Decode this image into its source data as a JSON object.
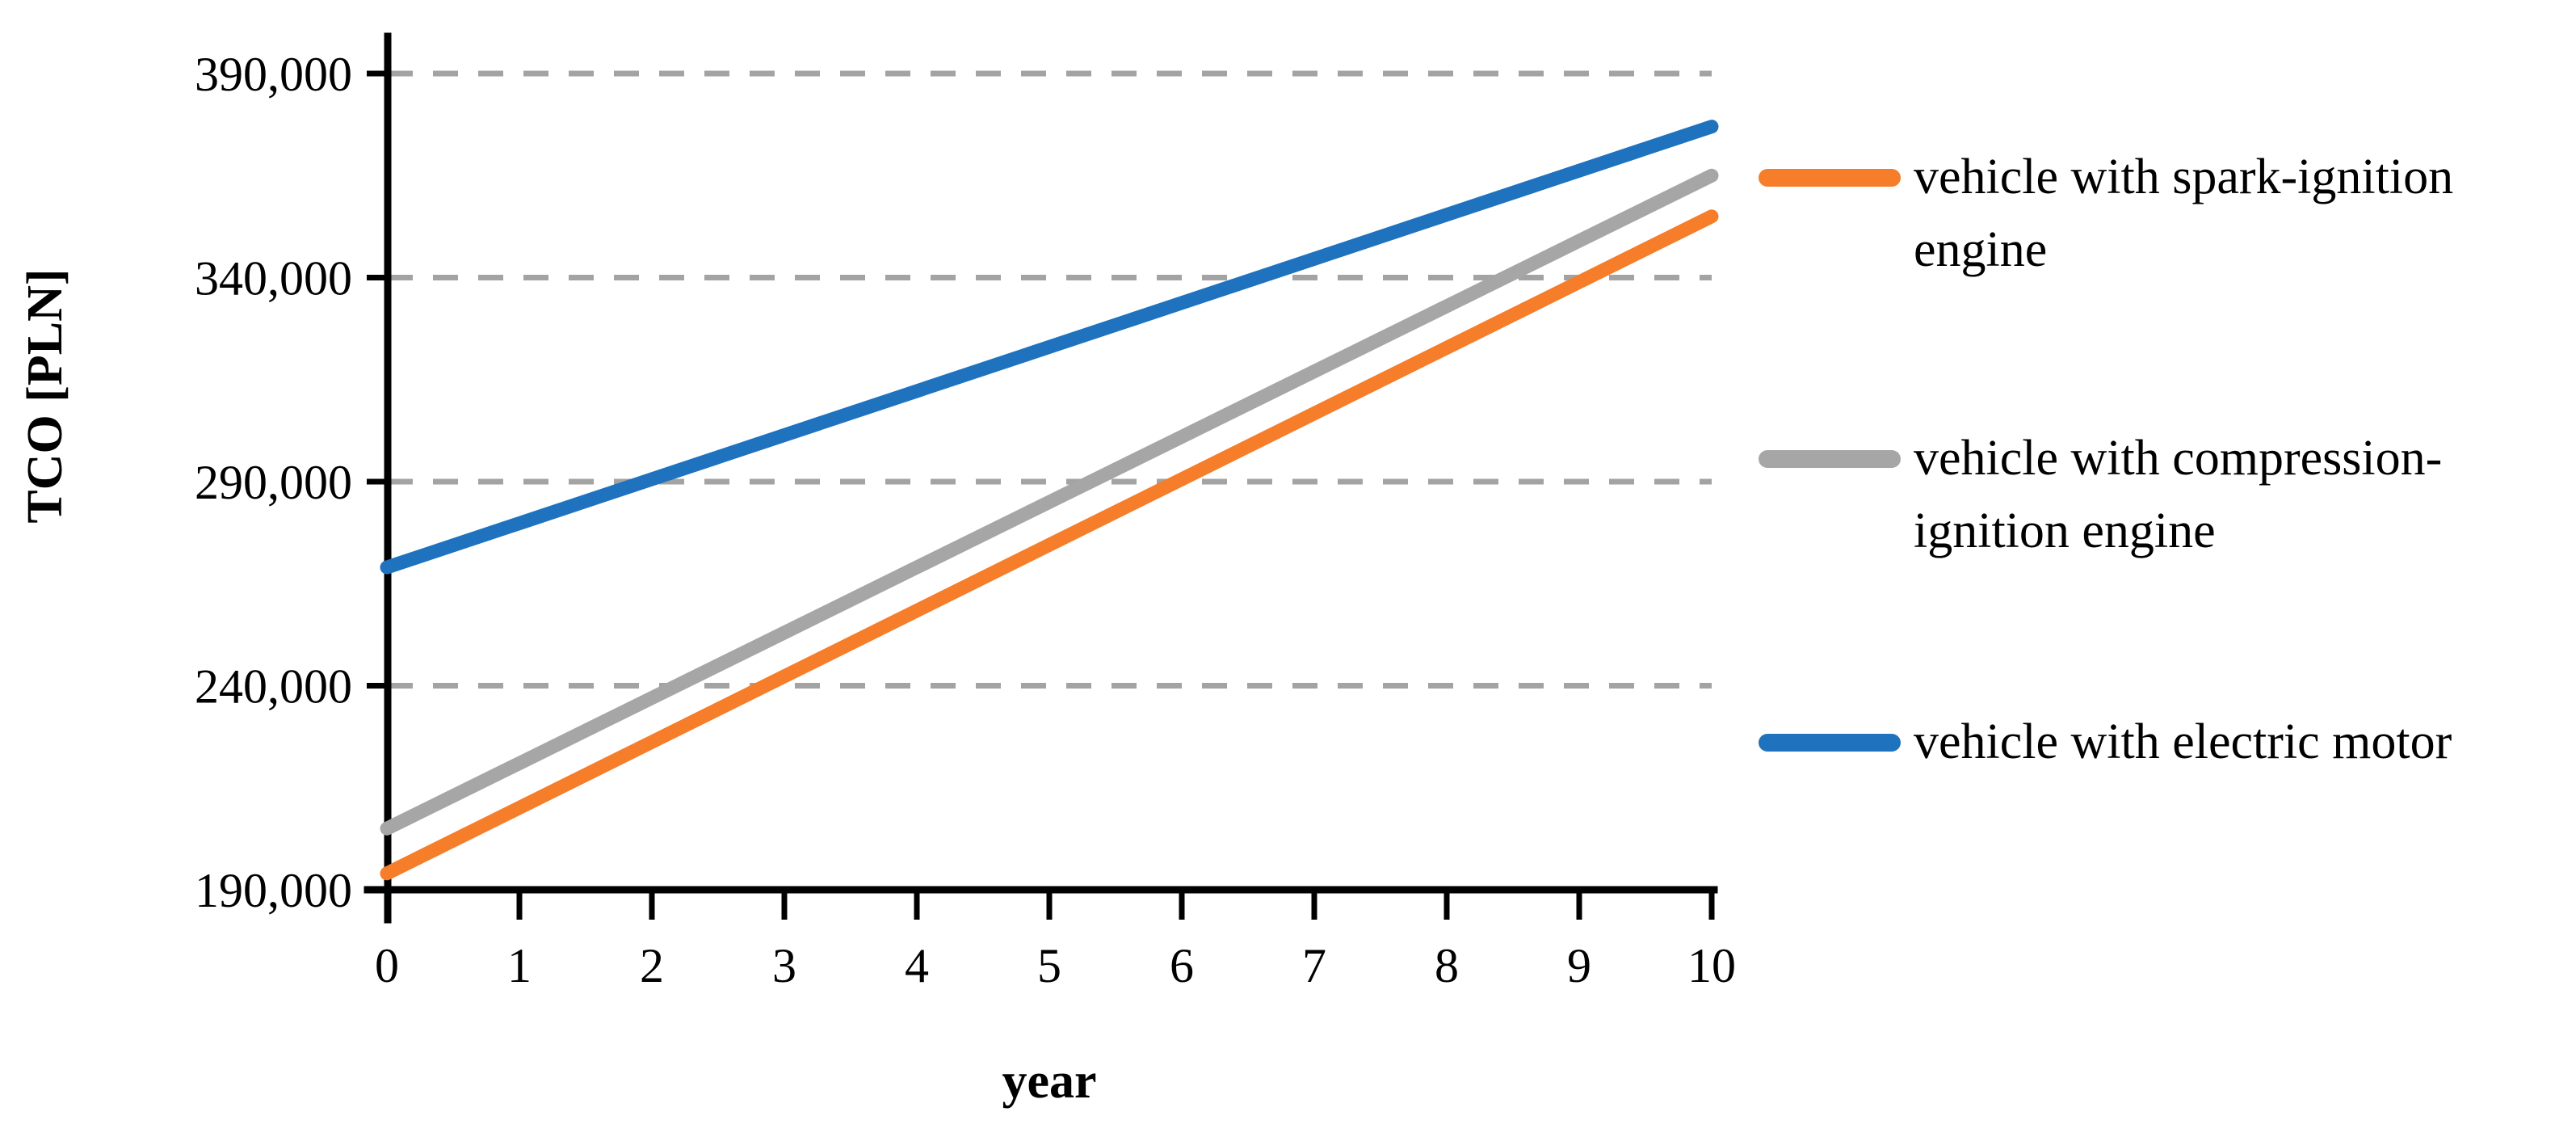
{
  "figure": {
    "background": "#FFFFFF",
    "axis_color": "#000000",
    "gridline_color": "#A3A3A3",
    "gridline_style": "dashed"
  },
  "chart_data": {
    "type": "line",
    "title": "",
    "xlabel": "year",
    "ylabel": "TCO [PLN]",
    "xlim": [
      0,
      10
    ],
    "ylim": [
      190000,
      390000
    ],
    "x": [
      0,
      1,
      2,
      3,
      4,
      5,
      6,
      7,
      8,
      9,
      10
    ],
    "xtick_labels": [
      "0",
      "1",
      "2",
      "3",
      "4",
      "5",
      "6",
      "7",
      "8",
      "9",
      "10"
    ],
    "yticks": [
      190000,
      240000,
      290000,
      340000,
      390000
    ],
    "ytick_labels": [
      "190,000",
      "240,000",
      "290,000",
      "340,000",
      "390,000"
    ],
    "grid": "horizontal-dashed",
    "legend_position": "right",
    "series": [
      {
        "key": "spark-ignition",
        "name": "vehicle with spark-ignition engine",
        "color": "#F67D29",
        "values": [
          194000,
          210100,
          226200,
          242300,
          258400,
          274500,
          290600,
          306700,
          322800,
          338900,
          355000
        ]
      },
      {
        "key": "compression-ignition",
        "name": "vehicle with compression-ignition engine",
        "color": "#A6A6A6",
        "values": [
          205000,
          221000,
          237000,
          253000,
          269000,
          285000,
          301000,
          317000,
          333000,
          349000,
          365000
        ]
      },
      {
        "key": "electric",
        "name": "vehicle with electric motor",
        "color": "#1F72BE",
        "values": [
          269000,
          279800,
          290600,
          301400,
          312200,
          323000,
          333800,
          344600,
          355400,
          366200,
          377000
        ]
      }
    ]
  }
}
